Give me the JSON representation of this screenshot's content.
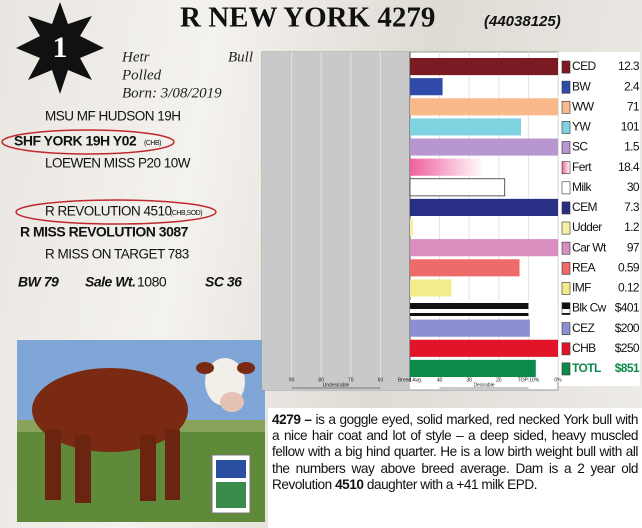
{
  "lot": "1",
  "header": {
    "title": "R NEW YORK 4279",
    "registration": "(44038125)"
  },
  "info": {
    "breed": "Hetr",
    "sex": "Bull",
    "horn": "Polled",
    "born": "Born: 3/08/2019"
  },
  "pedigree": {
    "sire_sire": "MSU MF HUDSON 19H",
    "sire": "SHF YORK 19H Y02",
    "sire_tag": "(CHB)",
    "sire_dam": "LOEWEN MISS P20 10W",
    "dam_sire": "R REVOLUTION 4510",
    "dam_sire_tag": "(CHB,SOD)",
    "dam": "R MISS REVOLUTION 3087",
    "dam_dam": "R MISS ON TARGET 783"
  },
  "stats": {
    "bw": "BW 79",
    "sale_wt_label": "Sale Wt.",
    "sale_wt": "1080",
    "sc": "SC 36"
  },
  "description": {
    "lead": "4279 –",
    "text1": " is a goggle eyed, solid marked, red necked York bull with a nice hair coat and lot of style – a deep sided, heavy muscled fellow with a big hind quarter. He is a low birth weight bull with all the numbers way above breed average. Dam is a 2 year old Revolution ",
    "bold": "4510",
    "text2": " daughter with a +41 milk EPD."
  },
  "chart_data": {
    "type": "bar",
    "orientation": "horizontal",
    "categories": [
      "CED",
      "BW",
      "WW",
      "YW",
      "SC",
      "Fert",
      "Milk",
      "CEM",
      "Udder",
      "Car Wt",
      "REA",
      "IMF",
      "Blk Cw",
      "CEZ",
      "CHB",
      "TOTL"
    ],
    "epd": [
      12.3,
      2.4,
      71,
      101,
      1.5,
      18.4,
      30,
      7.3,
      1.2,
      97,
      0.59,
      0.12,
      {
        "value": 401,
        "label": "$401"
      },
      {
        "value": 200,
        "label": "$200"
      },
      {
        "value": 250,
        "label": "$250"
      },
      {
        "value": 851,
        "label": "$851"
      }
    ],
    "values": [
      0,
      39,
      0,
      12.5,
      0,
      25,
      18,
      0,
      49,
      0,
      13,
      36,
      10,
      9.5,
      0,
      7.5
    ],
    "base": 50,
    "colors": [
      "#7b1a22",
      "#2f4aa8",
      "#f9b98a",
      "#7fd3e0",
      "#b896d0",
      "#f0609c",
      "#ffffff",
      "#2a2f86",
      "#f7f0a0",
      "#d88fc0",
      "#ef6b6b",
      "#f4ec8a",
      "#111111",
      "#8b8fd0",
      "#e3142a",
      "#0b8a4a"
    ],
    "xlim": [
      100,
      0
    ],
    "xticks": [
      90,
      80,
      70,
      60,
      {
        "value": 50,
        "label": "Breed Avg."
      },
      40,
      30,
      20,
      {
        "value": 10,
        "label": "TOP 10%"
      },
      {
        "value": 0,
        "label": "0%"
      }
    ],
    "undesirable": "Undesirable",
    "desirable": "Desirable"
  }
}
